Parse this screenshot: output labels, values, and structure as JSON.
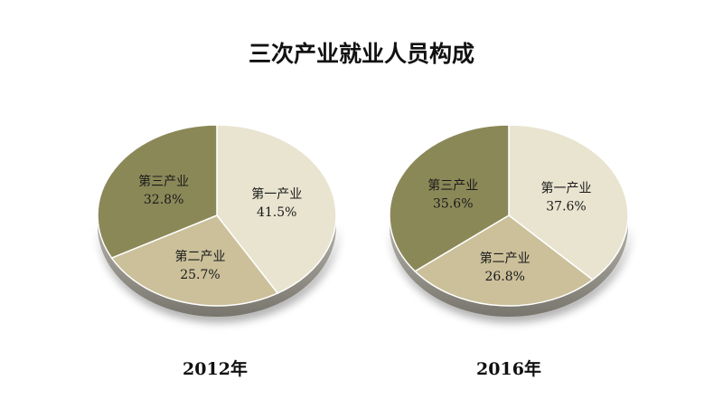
{
  "title": "三次产业就业人员构成",
  "colors": {
    "第一产业": "#e8e4d0",
    "第二产业": "#cbc09a",
    "第三产业": "#8b8858"
  },
  "chart_data": [
    {
      "type": "pie",
      "caption": "2012年",
      "categories": [
        "第一产业",
        "第二产业",
        "第三产业"
      ],
      "values": [
        41.5,
        25.7,
        32.8
      ],
      "labels": [
        "41.5%",
        "25.7%",
        "32.8%"
      ]
    },
    {
      "type": "pie",
      "caption": "2016年",
      "categories": [
        "第一产业",
        "第二产业",
        "第三产业"
      ],
      "values": [
        37.6,
        26.8,
        35.6
      ],
      "labels": [
        "37.6%",
        "26.8%",
        "35.6%"
      ]
    }
  ]
}
